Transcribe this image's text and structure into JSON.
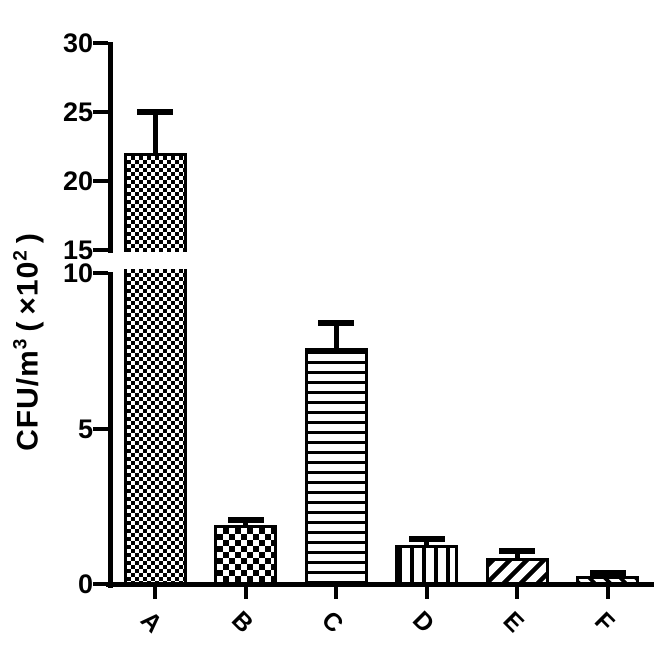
{
  "chart_data": {
    "type": "bar",
    "title": "",
    "xlabel": "",
    "ylabel": "CFU/m³（×10²）",
    "ylabel_parts": {
      "base": "CFU/m",
      "base_sup": "3",
      "open": "(",
      "mult": "×10",
      "mult_sup": "2",
      "close": ")"
    },
    "categories": [
      "A",
      "B",
      "C",
      "D",
      "E",
      "F"
    ],
    "values": [
      22,
      1.9,
      7.6,
      1.25,
      0.85,
      0.25
    ],
    "error_tops": [
      25,
      2.05,
      8.4,
      1.45,
      1.05,
      0.35
    ],
    "patterns": [
      "checker-fine",
      "checker-coarse",
      "hlines",
      "vlines",
      "diag-up",
      "diag-down"
    ],
    "bar_color": "#000000",
    "background": "#ffffff",
    "grid": false,
    "legend": "none",
    "axis_break": {
      "lower_range": [
        0,
        10
      ],
      "upper_range": [
        15,
        30
      ]
    },
    "y_ticks_upper": [
      30,
      25,
      20,
      15
    ],
    "y_ticks_lower": [
      10,
      5,
      0
    ],
    "error_bar_style": "SD upper only, capped"
  }
}
